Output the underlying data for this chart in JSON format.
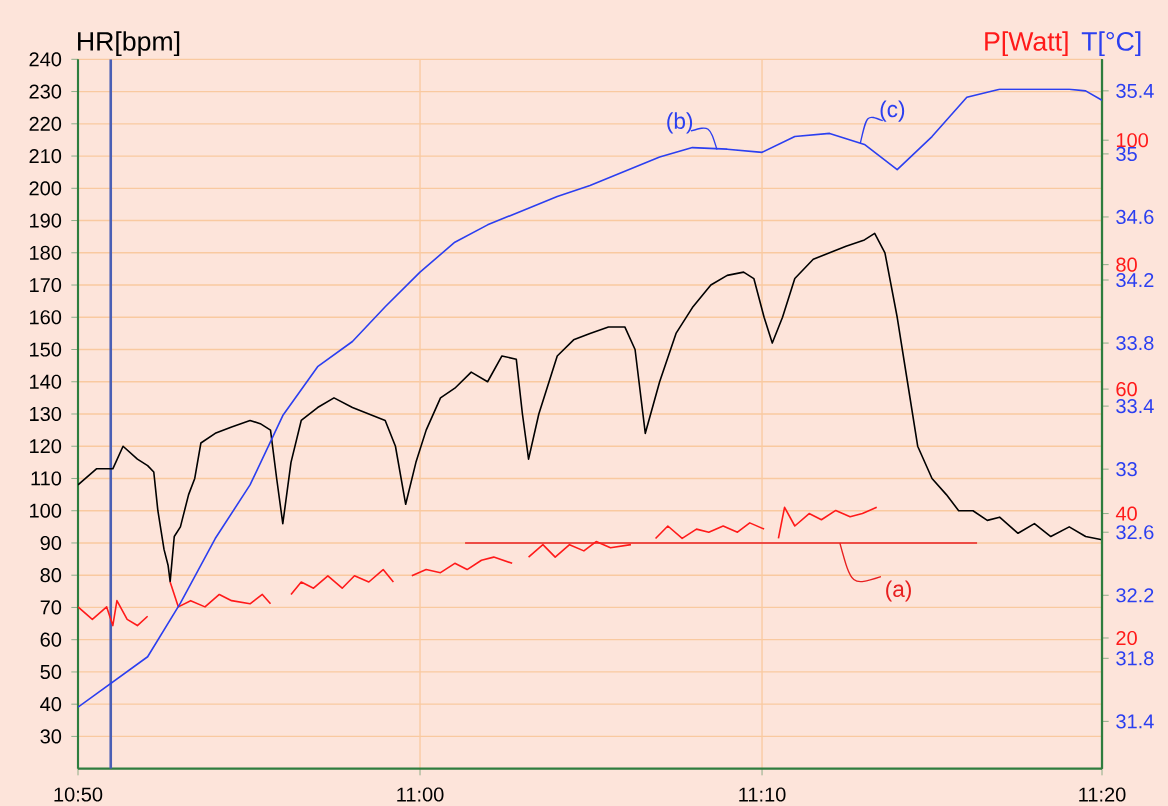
{
  "chart_data": {
    "type": "line",
    "ylabel": "HR[bpm]",
    "y2label": "P[Watt]",
    "y3label": "T[°C]",
    "xlim": [
      10.833,
      11.333
    ],
    "xticks": [
      {
        "value": 10.833,
        "label": "10:50"
      },
      {
        "value": 11,
        "label": "11:00"
      },
      {
        "value": 11.167,
        "label": "11:10"
      },
      {
        "value": 11.333,
        "label": "11:20"
      }
    ],
    "ylim": [
      20,
      240
    ],
    "yticks": [
      30,
      40,
      50,
      60,
      70,
      80,
      90,
      100,
      110,
      120,
      130,
      140,
      150,
      160,
      170,
      180,
      190,
      200,
      210,
      220,
      230,
      240
    ],
    "y2lim": [
      -1,
      113
    ],
    "y2ticks": [
      20,
      40,
      60,
      80,
      100
    ],
    "y3lim": [
      31.1,
      35.6
    ],
    "y3ticks": [
      31.4,
      31.8,
      32.2,
      32.6,
      33,
      33.4,
      33.8,
      34.2,
      34.6,
      35,
      35.4
    ],
    "grid": true,
    "series": [
      {
        "color": "#000000",
        "x": [
          10.833,
          10.842,
          10.85,
          10.855,
          10.862,
          10.867,
          10.87,
          10.872,
          10.875,
          10.877,
          10.878,
          10.88,
          10.883,
          10.887,
          10.89,
          10.893,
          10.9,
          10.908,
          10.917,
          10.922,
          10.927,
          10.93,
          10.933,
          10.937,
          10.942,
          10.95,
          10.958,
          10.967,
          10.975,
          10.983,
          10.988,
          10.993,
          10.998,
          11.003,
          11.01,
          11.017,
          11.025,
          11.033,
          11.04,
          11.047,
          11.05,
          11.053,
          11.058,
          11.067,
          11.075,
          11.083,
          11.092,
          11.1,
          11.105,
          11.11,
          11.117,
          11.125,
          11.133,
          11.142,
          11.15,
          11.158,
          11.163,
          11.168,
          11.172,
          11.177,
          11.183,
          11.192,
          11.2,
          11.208,
          11.217,
          11.222,
          11.227,
          11.233,
          11.238,
          11.243,
          11.25,
          11.257,
          11.263,
          11.27,
          11.277,
          11.283,
          11.292,
          11.3,
          11.308,
          11.317,
          11.325,
          11.333
        ],
        "values": [
          108,
          113,
          113,
          120,
          116,
          114,
          112,
          100,
          88,
          83,
          78,
          92,
          95,
          105,
          110,
          121,
          124,
          126,
          128,
          127,
          125,
          110,
          96,
          115,
          128,
          132,
          135,
          132,
          130,
          128,
          120,
          102,
          115,
          125,
          135,
          138,
          143,
          140,
          148,
          147,
          130,
          116,
          130,
          148,
          153,
          155,
          157,
          157,
          150,
          124,
          140,
          155,
          163,
          170,
          173,
          174,
          172,
          160,
          152,
          160,
          172,
          178,
          180,
          182,
          184,
          186,
          180,
          160,
          140,
          120,
          110,
          105,
          100,
          100,
          97,
          98,
          93,
          96,
          92,
          95,
          92,
          91
        ]
      },
      {
        "color": "#ff1a1a",
        "axis": "y2",
        "x": [
          10.833,
          10.84,
          10.847,
          10.85,
          10.852,
          10.857,
          10.862,
          10.867,
          10.873,
          10.878,
          10.882,
          10.888,
          10.895,
          10.902,
          10.908,
          10.917,
          10.923,
          10.927,
          10.931,
          10.937,
          10.942,
          10.948,
          10.955,
          10.962,
          10.968,
          10.975,
          10.982,
          10.987,
          10.991,
          10.996,
          11.003,
          11.01,
          11.017,
          11.023,
          11.03,
          11.036,
          11.045,
          11.049,
          11.053,
          11.06,
          11.066,
          11.073,
          11.08,
          11.086,
          11.093,
          11.103,
          11.108,
          11.115,
          11.121,
          11.128,
          11.135,
          11.141,
          11.148,
          11.155,
          11.161,
          11.168,
          11.171,
          11.175,
          11.178,
          11.183,
          11.19,
          11.196,
          11.203,
          11.21,
          11.216,
          11.223
        ],
        "values": [
          25,
          23,
          25,
          22,
          26,
          23,
          22,
          23.5,
          null,
          29,
          25,
          26,
          25,
          27,
          26,
          25.5,
          27,
          25.5,
          null,
          27,
          29,
          28,
          30,
          28,
          30,
          29,
          31,
          29,
          null,
          30,
          31,
          30.5,
          32,
          31,
          32.5,
          33,
          32,
          null,
          33,
          35,
          33,
          35,
          34,
          35.5,
          34.5,
          35,
          null,
          36,
          38,
          36,
          37.5,
          37,
          38,
          37,
          38.5,
          37.5,
          null,
          36,
          41,
          38,
          40,
          39,
          40.5,
          39.5,
          40,
          41
        ]
      },
      {
        "color": "#2b3ff0",
        "axis": "y3",
        "x": [
          10.833,
          10.85,
          10.867,
          10.883,
          10.9,
          10.917,
          10.933,
          10.95,
          10.967,
          10.983,
          11,
          11.017,
          11.033,
          11.05,
          11.067,
          11.083,
          11.1,
          11.117,
          11.133,
          11.15,
          11.167,
          11.183,
          11.2,
          11.217,
          11.233,
          11.25,
          11.267,
          11.283,
          11.3,
          11.317,
          11.325,
          11.333
        ],
        "values": [
          31.49,
          31.65,
          31.81,
          32.15,
          32.56,
          32.9,
          33.34,
          33.65,
          33.81,
          34.03,
          34.25,
          34.44,
          34.55,
          34.64,
          34.73,
          34.8,
          34.89,
          34.98,
          35.04,
          35.03,
          35.01,
          35.11,
          35.13,
          35.06,
          34.9,
          35.11,
          35.36,
          35.41,
          35.41,
          35.41,
          35.4,
          35.34
        ]
      },
      {
        "type": "line",
        "color": "#e82020",
        "x": [
          11.022,
          11.272
        ],
        "values": [
          90,
          90
        ]
      }
    ],
    "ref_lines": [
      {
        "axis": "x",
        "value": 10.849,
        "color": "#4a5fb5"
      }
    ],
    "annotations": [
      {
        "text": "(a)",
        "x": 11.205,
        "y": 90
      },
      {
        "text": "(b)",
        "x": 11.145,
        "y": 212
      },
      {
        "text": "(c)",
        "x": 11.215,
        "y": 214
      }
    ]
  }
}
